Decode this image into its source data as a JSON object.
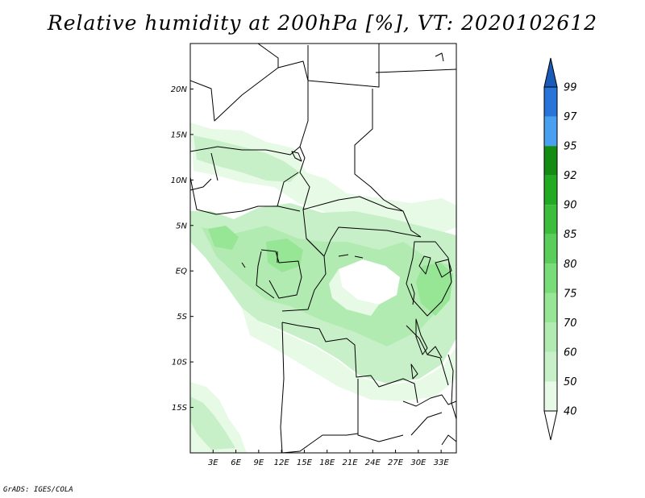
{
  "title": "Relative humidity at 200hPa [%], VT: 2020102612",
  "credit": "GrADS: IGES/COLA",
  "map": {
    "lon_range": [
      0,
      35
    ],
    "lat_range": [
      -20,
      25
    ],
    "lat_ticks": [
      {
        "value": 20,
        "label": "20N"
      },
      {
        "value": 15,
        "label": "15N"
      },
      {
        "value": 10,
        "label": "10N"
      },
      {
        "value": 5,
        "label": "5N"
      },
      {
        "value": 0,
        "label": "EQ"
      },
      {
        "value": -5,
        "label": "5S"
      },
      {
        "value": -10,
        "label": "10S"
      },
      {
        "value": -15,
        "label": "15S"
      }
    ],
    "lon_ticks": [
      {
        "value": 3,
        "label": "3E"
      },
      {
        "value": 6,
        "label": "6E"
      },
      {
        "value": 9,
        "label": "9E"
      },
      {
        "value": 12,
        "label": "12E"
      },
      {
        "value": 15,
        "label": "15E"
      },
      {
        "value": 18,
        "label": "18E"
      },
      {
        "value": 21,
        "label": "21E"
      },
      {
        "value": 24,
        "label": "24E"
      },
      {
        "value": 27,
        "label": "27E"
      },
      {
        "value": 30,
        "label": "30E"
      },
      {
        "value": 33,
        "label": "33E"
      }
    ]
  },
  "colorbar": {
    "labels": [
      "40",
      "50",
      "60",
      "70",
      "75",
      "80",
      "85",
      "90",
      "92",
      "95",
      "97",
      "99"
    ],
    "colors": [
      "#ffffff",
      "#e6fae6",
      "#c8f0c8",
      "#b2ebb2",
      "#96e696",
      "#78dc78",
      "#5acd5a",
      "#3cbe3c",
      "#22aa22",
      "#148c14",
      "#4aa0f0",
      "#2874d8",
      "#1a5ab8"
    ]
  }
}
